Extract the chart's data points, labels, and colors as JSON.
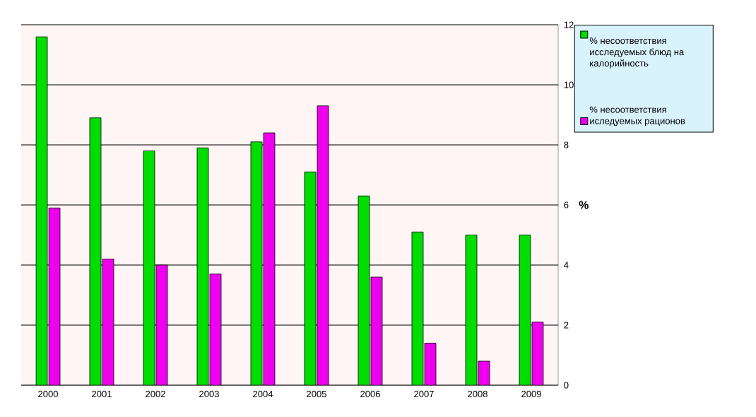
{
  "chart_data": {
    "type": "bar",
    "ylabel": "%",
    "categories": [
      "2000",
      "2001",
      "2002",
      "2003",
      "2004",
      "2005",
      "2006",
      "2007",
      "2008",
      "2009"
    ],
    "series": [
      {
        "name": "% несоответствия исследуемых блюд на калорийность",
        "color": "#00dd00",
        "values": [
          11.6,
          8.9,
          7.8,
          7.9,
          8.1,
          7.1,
          6.3,
          5.1,
          5.0,
          5.0
        ]
      },
      {
        "name": "% несоответствия иследуемых рационов",
        "color": "#ee00ee",
        "values": [
          5.9,
          4.2,
          4.0,
          3.7,
          8.4,
          9.3,
          3.6,
          1.4,
          0.8,
          2.1
        ]
      }
    ],
    "ylim": [
      0,
      12
    ],
    "yticks": [
      0,
      2,
      4,
      6,
      8,
      10,
      12
    ],
    "grid": "y",
    "legend": "right"
  }
}
